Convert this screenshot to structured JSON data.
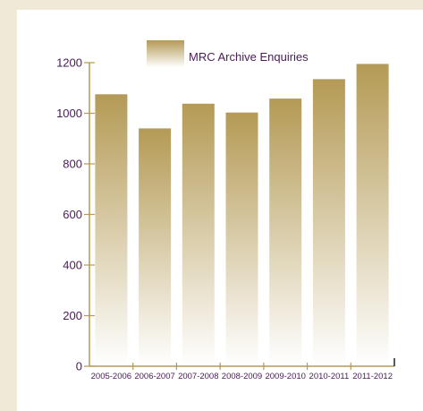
{
  "chart_data": {
    "type": "bar",
    "categories": [
      "2005-2006",
      "2006-2007",
      "2007-2008",
      "2008-2009",
      "2009-2010",
      "2010-2011",
      "2011-2012"
    ],
    "series": [
      {
        "name": "MRC Archive Enquiries",
        "values": [
          1075,
          940,
          1038,
          1003,
          1058,
          1135,
          1195
        ]
      }
    ],
    "ylim": [
      0,
      1200
    ],
    "yticks": [
      0,
      200,
      400,
      600,
      800,
      1000,
      1200
    ],
    "grid": false,
    "legend": "top-center",
    "colors": {
      "bar_top": "#b49a55",
      "bar_bottom": "#ffffff",
      "text": "#4a1b57",
      "axis": "#b49a55",
      "frame": "#f1e9d8"
    }
  }
}
